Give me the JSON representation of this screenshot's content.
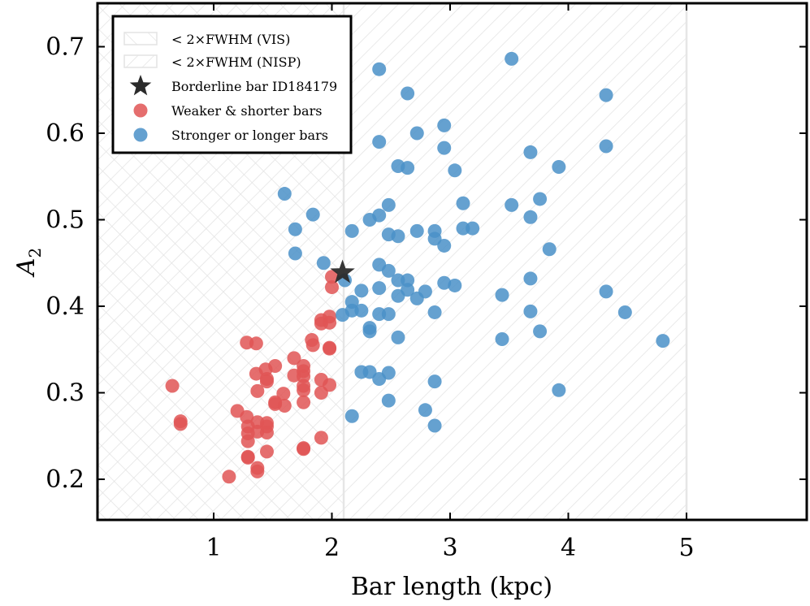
{
  "chart_data": {
    "type": "scatter",
    "xlabel": "Bar length (kpc)",
    "ylabel": "A",
    "ylabel_subscript": "2",
    "xlim": [
      0,
      6
    ],
    "ylim": [
      0.15,
      0.75
    ],
    "xticks": [
      1,
      2,
      3,
      4,
      5
    ],
    "xtick_labels": [
      "1",
      "2",
      "3",
      "4",
      "5"
    ],
    "yticks": [
      0.2,
      0.3,
      0.4,
      0.5,
      0.6,
      0.7
    ],
    "ytick_labels": [
      "0.2",
      "0.3",
      "0.4",
      "0.5",
      "0.6",
      "0.7"
    ],
    "grid": false,
    "legend_location": "top-left",
    "hatched_regions": [
      {
        "name": "< 2×FWHM (VIS)",
        "x_range": [
          0,
          2.1
        ],
        "style": "cross-hatch",
        "color": "#e3e3e3"
      },
      {
        "name": "< 2×FWHM (NISP)",
        "x_range": [
          0,
          5.0
        ],
        "style": "diagonal",
        "color": "#e3e3e3"
      }
    ],
    "series": [
      {
        "name": "Weaker & shorter bars",
        "color": "#e05555",
        "marker": "circle",
        "points": [
          [
            0.65,
            0.308
          ],
          [
            0.72,
            0.267
          ],
          [
            0.72,
            0.264
          ],
          [
            1.13,
            0.203
          ],
          [
            1.2,
            0.279
          ],
          [
            1.28,
            0.358
          ],
          [
            1.28,
            0.272
          ],
          [
            1.29,
            0.261
          ],
          [
            1.29,
            0.253
          ],
          [
            1.29,
            0.244
          ],
          [
            1.29,
            0.226
          ],
          [
            1.29,
            0.225
          ],
          [
            1.36,
            0.357
          ],
          [
            1.36,
            0.322
          ],
          [
            1.37,
            0.302
          ],
          [
            1.37,
            0.266
          ],
          [
            1.37,
            0.255
          ],
          [
            1.37,
            0.213
          ],
          [
            1.37,
            0.209
          ],
          [
            1.44,
            0.327
          ],
          [
            1.45,
            0.316
          ],
          [
            1.45,
            0.313
          ],
          [
            1.45,
            0.265
          ],
          [
            1.45,
            0.261
          ],
          [
            1.45,
            0.254
          ],
          [
            1.45,
            0.232
          ],
          [
            1.52,
            0.331
          ],
          [
            1.52,
            0.289
          ],
          [
            1.52,
            0.287
          ],
          [
            1.59,
            0.299
          ],
          [
            1.6,
            0.285
          ],
          [
            1.68,
            0.34
          ],
          [
            1.68,
            0.32
          ],
          [
            1.76,
            0.331
          ],
          [
            1.76,
            0.325
          ],
          [
            1.76,
            0.319
          ],
          [
            1.76,
            0.308
          ],
          [
            1.76,
            0.303
          ],
          [
            1.76,
            0.289
          ],
          [
            1.76,
            0.236
          ],
          [
            1.76,
            0.235
          ],
          [
            1.83,
            0.361
          ],
          [
            1.84,
            0.355
          ],
          [
            1.91,
            0.384
          ],
          [
            1.91,
            0.38
          ],
          [
            1.91,
            0.315
          ],
          [
            1.91,
            0.3
          ],
          [
            1.91,
            0.248
          ],
          [
            1.98,
            0.388
          ],
          [
            1.98,
            0.381
          ],
          [
            1.98,
            0.352
          ],
          [
            1.98,
            0.351
          ],
          [
            1.98,
            0.309
          ],
          [
            2.0,
            0.434
          ],
          [
            2.0,
            0.422
          ]
        ]
      },
      {
        "name": "Stronger or longer bars",
        "color": "#4a90c8",
        "marker": "circle",
        "points": [
          [
            1.6,
            0.53
          ],
          [
            1.69,
            0.489
          ],
          [
            1.69,
            0.461
          ],
          [
            1.84,
            0.506
          ],
          [
            1.93,
            0.45
          ],
          [
            2.09,
            0.39
          ],
          [
            2.11,
            0.43
          ],
          [
            2.17,
            0.487
          ],
          [
            2.17,
            0.405
          ],
          [
            2.17,
            0.395
          ],
          [
            2.17,
            0.273
          ],
          [
            2.25,
            0.418
          ],
          [
            2.25,
            0.395
          ],
          [
            2.25,
            0.324
          ],
          [
            2.32,
            0.5
          ],
          [
            2.32,
            0.375
          ],
          [
            2.32,
            0.371
          ],
          [
            2.32,
            0.324
          ],
          [
            2.4,
            0.674
          ],
          [
            2.4,
            0.59
          ],
          [
            2.4,
            0.505
          ],
          [
            2.4,
            0.448
          ],
          [
            2.4,
            0.421
          ],
          [
            2.4,
            0.391
          ],
          [
            2.4,
            0.316
          ],
          [
            2.48,
            0.517
          ],
          [
            2.48,
            0.483
          ],
          [
            2.48,
            0.441
          ],
          [
            2.48,
            0.391
          ],
          [
            2.48,
            0.323
          ],
          [
            2.48,
            0.291
          ],
          [
            2.56,
            0.562
          ],
          [
            2.56,
            0.481
          ],
          [
            2.56,
            0.43
          ],
          [
            2.56,
            0.412
          ],
          [
            2.56,
            0.364
          ],
          [
            2.64,
            0.646
          ],
          [
            2.64,
            0.56
          ],
          [
            2.64,
            0.43
          ],
          [
            2.64,
            0.419
          ],
          [
            2.72,
            0.6
          ],
          [
            2.72,
            0.487
          ],
          [
            2.72,
            0.409
          ],
          [
            2.79,
            0.417
          ],
          [
            2.79,
            0.28
          ],
          [
            2.87,
            0.487
          ],
          [
            2.87,
            0.478
          ],
          [
            2.87,
            0.393
          ],
          [
            2.87,
            0.313
          ],
          [
            2.87,
            0.262
          ],
          [
            2.95,
            0.609
          ],
          [
            2.95,
            0.583
          ],
          [
            2.95,
            0.47
          ],
          [
            2.95,
            0.427
          ],
          [
            3.04,
            0.557
          ],
          [
            3.04,
            0.424
          ],
          [
            3.11,
            0.519
          ],
          [
            3.11,
            0.49
          ],
          [
            3.19,
            0.49
          ],
          [
            3.44,
            0.413
          ],
          [
            3.44,
            0.362
          ],
          [
            3.52,
            0.686
          ],
          [
            3.52,
            0.517
          ],
          [
            3.68,
            0.578
          ],
          [
            3.68,
            0.503
          ],
          [
            3.68,
            0.432
          ],
          [
            3.68,
            0.394
          ],
          [
            3.76,
            0.524
          ],
          [
            3.76,
            0.371
          ],
          [
            3.84,
            0.466
          ],
          [
            3.92,
            0.561
          ],
          [
            3.92,
            0.303
          ],
          [
            4.32,
            0.644
          ],
          [
            4.32,
            0.585
          ],
          [
            4.32,
            0.417
          ],
          [
            4.48,
            0.393
          ],
          [
            4.8,
            0.36
          ]
        ]
      },
      {
        "name": "Borderline bar ID184179",
        "color": "#2b2b2b",
        "marker": "star",
        "points": [
          [
            2.09,
            0.439
          ]
        ]
      }
    ],
    "legend": [
      {
        "label": "< 2×FWHM (VIS)",
        "kind": "hatch-cross"
      },
      {
        "label": "< 2×FWHM (NISP)",
        "kind": "hatch-diag"
      },
      {
        "label": "Borderline bar ID184179",
        "kind": "star",
        "color": "#2b2b2b"
      },
      {
        "label": "Weaker & shorter bars",
        "kind": "circle",
        "color": "#e05555"
      },
      {
        "label": "Stronger or longer bars",
        "kind": "circle",
        "color": "#4a90c8"
      }
    ]
  }
}
